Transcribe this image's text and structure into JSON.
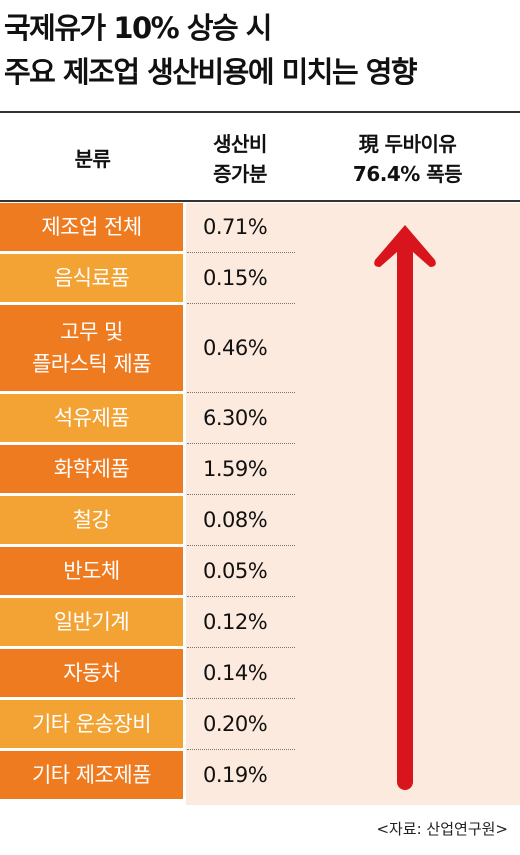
{
  "title": "국제유가 10% 상승 시\n주요 제조업 생산비용에 미치는 영향",
  "table": {
    "headers": [
      "분류",
      "생산비\n증가분",
      "現 두바이유\n76.4% 폭등"
    ],
    "rows": [
      [
        "제조업 전체",
        "0.71%"
      ],
      [
        "음식료품",
        "0.15%"
      ],
      [
        "고무 및\n플라스틱 제품",
        "0.46%"
      ],
      [
        "석유제품",
        "6.30%"
      ],
      [
        "화학제품",
        "1.59%"
      ],
      [
        "철강",
        "0.08%"
      ],
      [
        "반도체",
        "0.05%"
      ],
      [
        "일반기계",
        "0.12%"
      ],
      [
        "자동차",
        "0.14%"
      ],
      [
        "기타 운송장비",
        "0.20%"
      ],
      [
        "기타 제조제품",
        "0.19%"
      ]
    ]
  },
  "source": "<자료: 산업연구원>"
}
